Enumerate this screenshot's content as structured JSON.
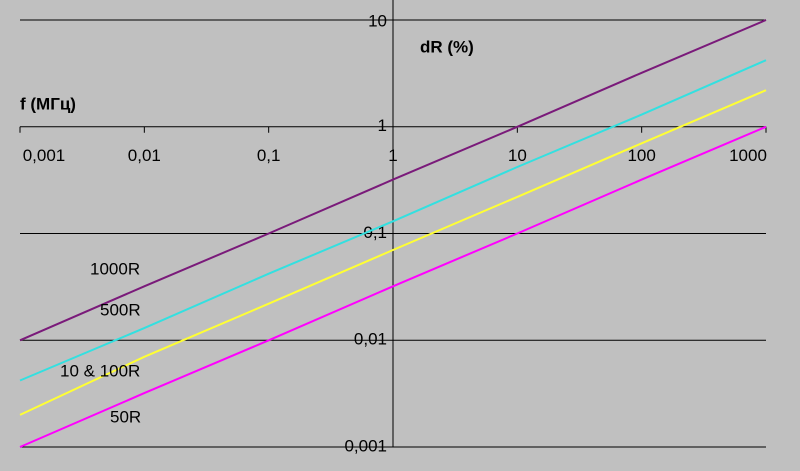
{
  "chart_data": {
    "type": "line",
    "x_label": "f (МГц)",
    "y_label": "dR (%)",
    "x": [
      0.001,
      0.01,
      0.1,
      1,
      10,
      100,
      1000
    ],
    "series": [
      {
        "name": "1000R",
        "color": "#7a1a7a",
        "values": [
          0.01,
          0.032,
          0.1,
          0.32,
          1,
          3.2,
          10
        ]
      },
      {
        "name": "500R",
        "color": "#33e0e0",
        "values": [
          0.0042,
          0.013,
          0.042,
          0.13,
          0.42,
          1.3,
          4.2
        ]
      },
      {
        "name": "10 & 100R",
        "color": "#ffff33",
        "values": [
          0.002,
          0.007,
          0.022,
          0.07,
          0.22,
          0.7,
          2.2
        ]
      },
      {
        "name": "50R",
        "color": "#ff00ff",
        "values": [
          0.001,
          0.0032,
          0.01,
          0.032,
          0.1,
          0.32,
          1
        ]
      }
    ],
    "xlim": [
      0.001,
      1000
    ],
    "ylim": [
      0.001,
      10
    ],
    "xticks": [
      {
        "value": 0.001,
        "label": "0,001"
      },
      {
        "value": 0.01,
        "label": "0,01"
      },
      {
        "value": 0.1,
        "label": "0,1"
      },
      1,
      10,
      100,
      1000
    ],
    "yticks": [
      {
        "value": 0.001,
        "label": "0,001"
      },
      {
        "value": 0.01,
        "label": "0,01"
      },
      {
        "value": 0.1,
        "label": "0,1"
      },
      1,
      10
    ],
    "log_x": true,
    "log_y": true,
    "grid": true
  }
}
